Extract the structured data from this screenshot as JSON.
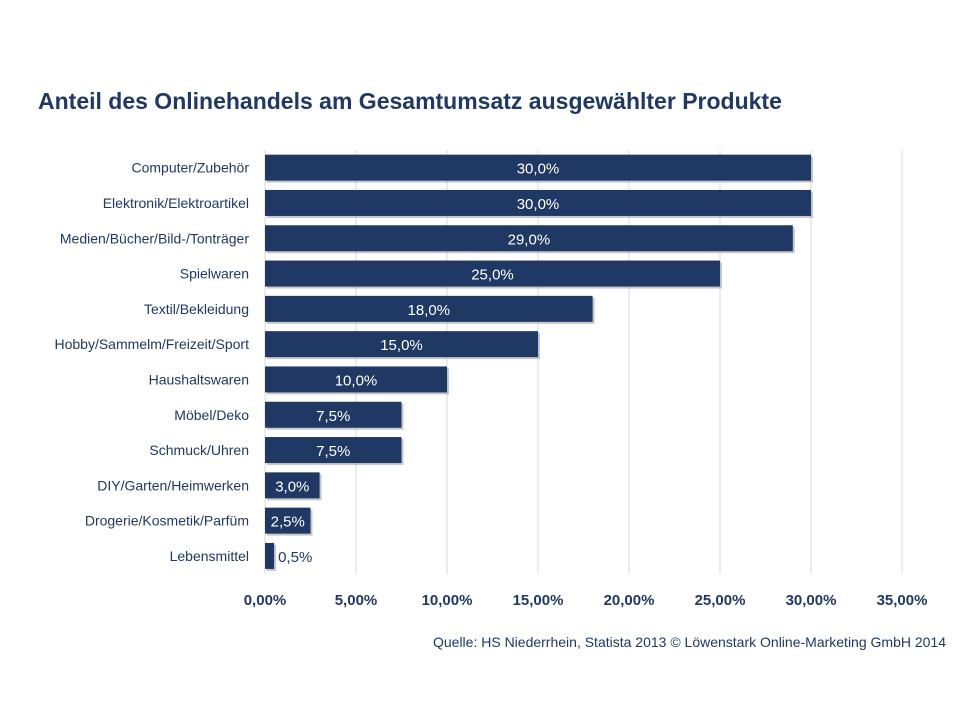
{
  "chart_data": {
    "type": "bar",
    "orientation": "horizontal",
    "title": "Anteil des Onlinehandels am Gesamtumsatz ausgewählter Produkte",
    "categories": [
      "Computer/Zubehör",
      "Elektronik/Elektroartikel",
      "Medien/Bücher/Bild-/Tonträger",
      "Spielwaren",
      "Textil/Bekleidung",
      "Hobby/Sammelm/Freizeit/Sport",
      "Haushaltswaren",
      "Möbel/Deko",
      "Schmuck/Uhren",
      "DIY/Garten/Heimwerken",
      "Drogerie/Kosmetik/Parfüm",
      "Lebensmittel"
    ],
    "values": [
      30.0,
      30.0,
      29.0,
      25.0,
      18.0,
      15.0,
      10.0,
      7.5,
      7.5,
      3.0,
      2.5,
      0.5
    ],
    "data_labels": [
      "30,0%",
      "30,0%",
      "29,0%",
      "25,0%",
      "18,0%",
      "15,0%",
      "10,0%",
      "7,5%",
      "7,5%",
      "3,0%",
      "2,5%",
      "0,5%"
    ],
    "xlim": [
      0,
      35
    ],
    "x_ticks": [
      0,
      5,
      10,
      15,
      20,
      25,
      30,
      35
    ],
    "x_tick_labels": [
      "0,00%",
      "5,00%",
      "10,00%",
      "15,00%",
      "20,00%",
      "25,00%",
      "30,00%",
      "35,00%"
    ],
    "xlabel": "",
    "ylabel": "",
    "grid": "vertical",
    "legend": "none",
    "bar_color": "#203864"
  },
  "source": "Quelle: HS Niederrhein, Statista 2013 © Löwenstark Online-Marketing GmbH 2014"
}
